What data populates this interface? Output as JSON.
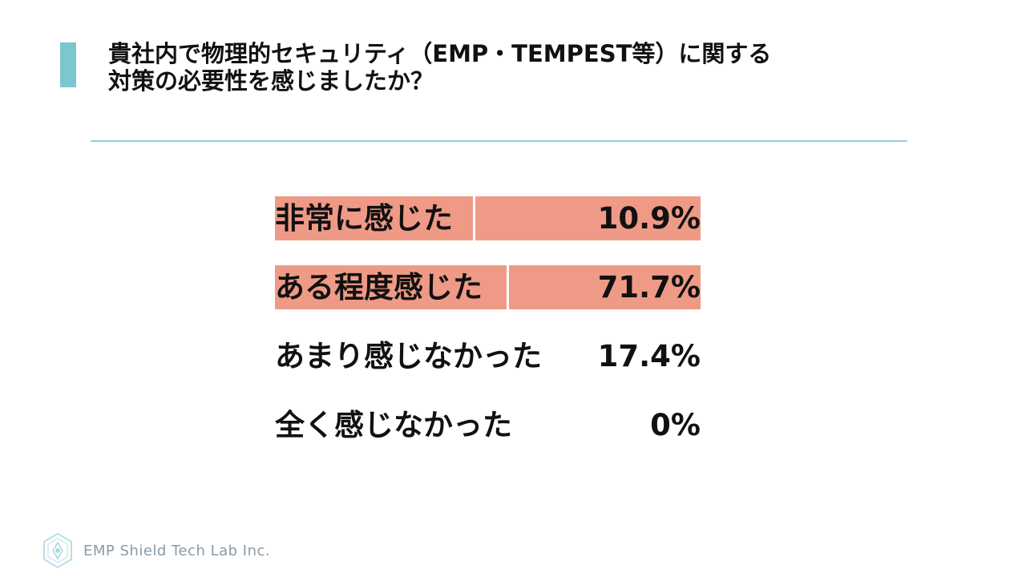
{
  "title": {
    "line1": "貴社内で物理的セキュリティ（EMP・TEMPEST等）に関する",
    "line2": "対策の必要性を感じましたか？"
  },
  "colors": {
    "accent": "#7ac7cf",
    "divider": "#8fd0d8",
    "highlight": "#ef9a86",
    "footer_text": "#8a9aa6"
  },
  "chart_data": {
    "type": "table",
    "title": "貴社内で物理的セキュリティ（EMP・TEMPEST等）に関する対策の必要性を感じましたか？",
    "categories": [
      "非常に感じた",
      "ある程度感じた",
      "あまり感じなかった",
      "全く感じなかった"
    ],
    "values": [
      10.9,
      71.7,
      17.4,
      0
    ],
    "labels": [
      "10.9%",
      "71.7%",
      "17.4%",
      "0%"
    ],
    "highlighted": [
      true,
      true,
      false,
      false
    ]
  },
  "footer": {
    "company": "EMP Shield Tech Lab Inc.",
    "logo_icon": "shield-logo-icon"
  }
}
